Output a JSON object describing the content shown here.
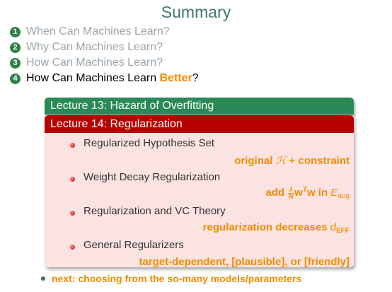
{
  "slide": {
    "title": "Summary",
    "outline": [
      {
        "num": "1",
        "text": "When Can Machines Learn?",
        "state": "dim"
      },
      {
        "num": "2",
        "text": "Why Can Machines Learn?",
        "state": "dim"
      },
      {
        "num": "3",
        "text": "How Can Machines Learn?",
        "state": "dim"
      },
      {
        "num": "4",
        "text_prefix": "How Can Machines Learn ",
        "text_highlight": "Better",
        "text_suffix": "?",
        "state": "active"
      }
    ],
    "lecture13": {
      "label": "Lecture 13: Hazard of Overfitting"
    },
    "lecture14": {
      "label": "Lecture 14: Regularization",
      "items": [
        {
          "title": "Regularized Hypothesis Set",
          "detail_a": "original ",
          "detail_b": "ℋ",
          "detail_c": " + constraint"
        },
        {
          "title": "Weight Decay Regularization",
          "detail_a": "add ",
          "frac_num": "λ",
          "frac_den": "N",
          "detail_b": "w",
          "detail_sup": "T",
          "detail_c": "w in ",
          "detail_e": "E",
          "detail_sub": "aug"
        },
        {
          "title": "Regularization and VC Theory",
          "detail_a": "regularization decreases ",
          "detail_e": "d",
          "detail_sub": "EFF"
        },
        {
          "title": "General Regularizers",
          "detail_a": "target-dependent, [plausible], or [friendly]"
        }
      ]
    },
    "next": "next: choosing from the so-many models/parameters"
  },
  "colors": {
    "title": "#3d7a63",
    "accent": "#f08c00",
    "lecture13_bg": "#2a8a57",
    "lecture14_head": "#b80000",
    "lecture14_body": "#fbe3e1",
    "dim_text": "#9aa89f"
  }
}
